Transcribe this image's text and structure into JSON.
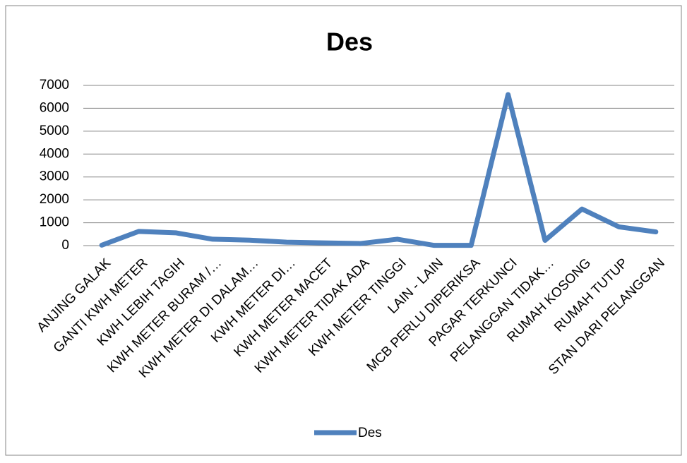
{
  "chart_data": {
    "type": "line",
    "title": "Des",
    "categories": [
      "ANJING GALAK",
      "GANTI KWH METER",
      "KWH LEBIH TAGIH",
      "KWH METER BURAM /…",
      "KWH METER DI DALAM…",
      "KWH METER DI…",
      "KWH METER MACET",
      "KWH METER TIDAK ADA",
      "KWH METER TINGGI",
      "LAIN - LAIN",
      "MCB PERLU DIPERIKSA",
      "PAGAR TERKUNCI",
      "PELANGGAN TIDAK…",
      "RUMAH KOSONG",
      "RUMAH TUTUP",
      "STAN DARI PELANGGAN"
    ],
    "series": [
      {
        "name": "Des",
        "color": "#4f81bd",
        "values": [
          20,
          620,
          560,
          280,
          240,
          150,
          120,
          90,
          280,
          10,
          10,
          6600,
          230,
          1600,
          820,
          600
        ]
      }
    ],
    "ylim": [
      0,
      7000
    ],
    "yticks": [
      0,
      1000,
      2000,
      3000,
      4000,
      5000,
      6000,
      7000
    ],
    "grid": true,
    "legend": "bottom"
  }
}
